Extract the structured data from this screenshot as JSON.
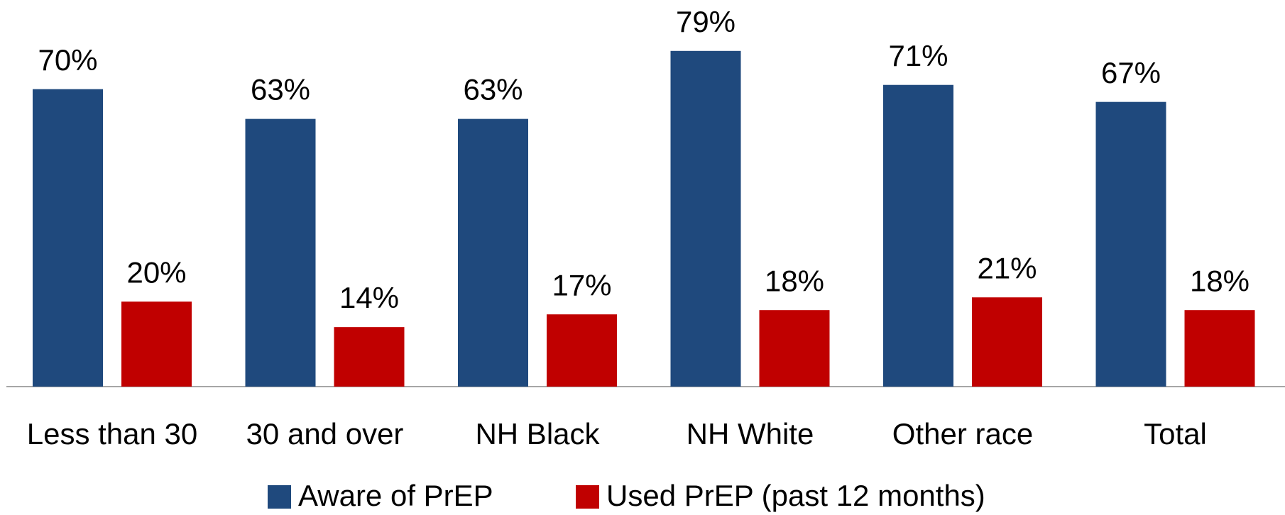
{
  "chart_data": {
    "type": "bar",
    "categories": [
      "Less than 30",
      "30 and over",
      "NH Black",
      "NH White",
      "Other race",
      "Total"
    ],
    "series": [
      {
        "name": "Aware of PrEP",
        "color": "#1f497d",
        "values": [
          70,
          63,
          63,
          79,
          71,
          67
        ],
        "value_labels": [
          "70%",
          "63%",
          "63%",
          "79%",
          "71%",
          "67%"
        ]
      },
      {
        "name": "Used PrEP (past 12 months)",
        "color": "#c00000",
        "values": [
          20,
          14,
          17,
          18,
          21,
          18
        ],
        "value_labels": [
          "20%",
          "14%",
          "17%",
          "18%",
          "21%",
          "18%"
        ]
      }
    ],
    "legend": "bottom"
  }
}
